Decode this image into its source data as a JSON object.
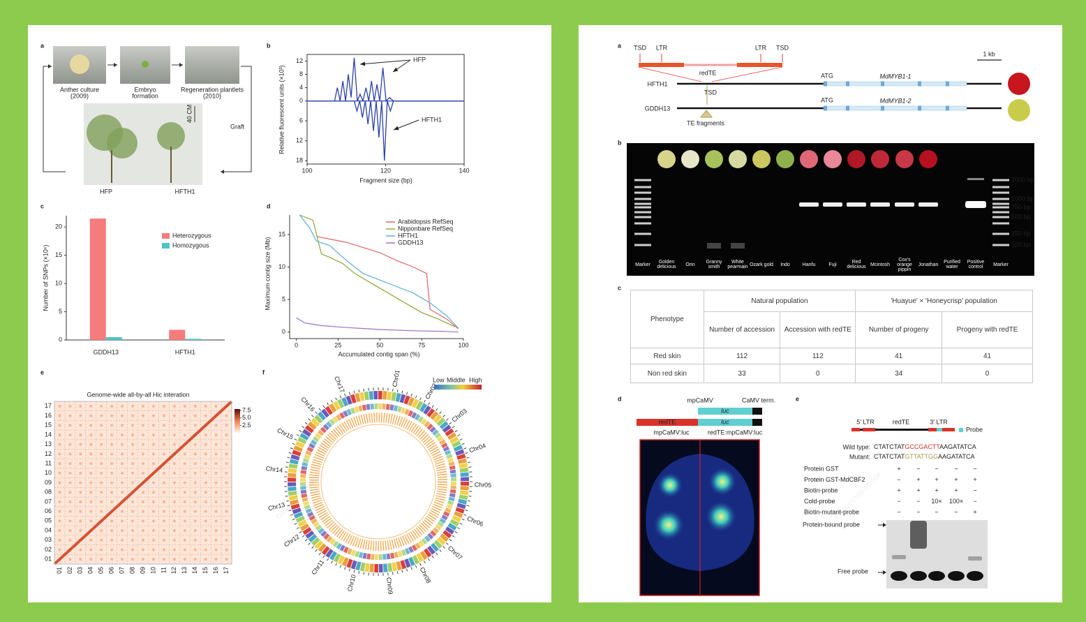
{
  "left_figure": {
    "panel_letters": [
      "a",
      "b",
      "c",
      "d",
      "e",
      "f"
    ],
    "steps": [
      [
        "Anther culture",
        "(2009)"
      ],
      [
        "Embryo",
        "formation"
      ],
      [
        "Regeneration plantlets",
        "(2010)"
      ]
    ],
    "graft": "Graft",
    "plants": [
      "HFP",
      "HFTH1"
    ],
    "scale": "40 CM"
  },
  "chart_data": [
    {
      "type": "line",
      "y_label": "Relative fluorescent units (×10³)",
      "x_label": "Fragment size (bp)",
      "xlim": [
        100,
        140
      ],
      "xticks": [
        100,
        120,
        140
      ],
      "ylim": [
        -19,
        14
      ],
      "yticks": [
        12,
        8,
        4,
        0,
        {
          "value": -6,
          "label": "6"
        },
        {
          "value": -12,
          "label": "12"
        },
        {
          "value": -18,
          "label": "18"
        }
      ],
      "series": [
        {
          "name": "HFP",
          "color": "#2b3fa8",
          "x": [
            100,
            107,
            107.7,
            108.4,
            109.1,
            109.8,
            110.5,
            111.2,
            112,
            112.8,
            113.5,
            114.2,
            115,
            115.7,
            116.4,
            117.1,
            117.8,
            118.5,
            119.3,
            120.1,
            121,
            122,
            140
          ],
          "values": [
            0,
            0,
            4,
            0,
            6,
            0,
            8,
            1,
            13,
            0,
            2,
            0,
            4,
            0,
            6,
            0,
            5,
            0,
            10,
            0,
            1,
            0,
            0
          ]
        },
        {
          "name": "HFTH1",
          "color": "#2b3fa8",
          "x": [
            100,
            112,
            112.7,
            113.4,
            114.1,
            114.8,
            115.5,
            116.2,
            116.9,
            117.6,
            118.3,
            119,
            119.7,
            120.4,
            121.2,
            122,
            140
          ],
          "values": [
            0,
            0,
            -3,
            0,
            -5,
            0,
            -7,
            0,
            -9,
            0,
            -11,
            0,
            -18,
            0,
            -3,
            0,
            0
          ]
        }
      ]
    },
    {
      "type": "bar",
      "y_label": "Number of SNPs (×10⁶)",
      "categories": [
        "GDDH13",
        "HFTH1"
      ],
      "ylim": [
        0,
        22
      ],
      "yticks": [
        0,
        5,
        10,
        15,
        20
      ],
      "legend": "upper right",
      "series": [
        {
          "name": "Heterozygous",
          "color": "#f47c7c",
          "values": [
            21.5,
            1.8
          ]
        },
        {
          "name": "Homozygous",
          "color": "#4fc3c9",
          "values": [
            0.5,
            0.2
          ]
        }
      ]
    },
    {
      "type": "line",
      "y_label": "Maximum contig size (Mb)",
      "x_label": "Accumulated contig span (%)",
      "xlim": [
        -4,
        100
      ],
      "xticks": [
        0,
        25,
        50,
        75,
        100
      ],
      "ylim": [
        -1,
        18
      ],
      "yticks": [
        0,
        5,
        10,
        15
      ],
      "legend": "upper right",
      "series": [
        {
          "name": "Arabidopsis RefSeq",
          "color": "#e06666",
          "x": [
            12,
            20,
            30,
            40,
            50,
            60,
            70,
            78,
            80,
            90,
            97
          ],
          "values": [
            14.7,
            14.3,
            13.8,
            13,
            12.2,
            11,
            10,
            9,
            3.5,
            2,
            0.5
          ]
        },
        {
          "name": "Nipponbare RefSeq",
          "color": "#8aa83a",
          "x": [
            2,
            10,
            15,
            20,
            28,
            35,
            45,
            55,
            65,
            75,
            85,
            95
          ],
          "values": [
            18,
            17.2,
            12,
            11.5,
            10.5,
            9,
            7.5,
            6,
            4.5,
            3,
            2,
            0.8
          ]
        },
        {
          "name": "HFTH1",
          "color": "#5aaed6",
          "x": [
            2,
            8,
            12,
            20,
            30,
            40,
            50,
            60,
            70,
            80,
            90,
            97
          ],
          "values": [
            18,
            16,
            14,
            13.3,
            11,
            9,
            8,
            7,
            6,
            4.5,
            2.5,
            0.6
          ]
        },
        {
          "name": "GDDH13",
          "color": "#9b6fc8",
          "x": [
            0,
            5,
            15,
            30,
            50,
            70,
            90,
            97
          ],
          "values": [
            2.2,
            1.4,
            1,
            0.7,
            0.4,
            0.2,
            0.1,
            0
          ]
        }
      ]
    },
    {
      "type": "heatmap",
      "title": "Genome-wide all-by-all Hic interation",
      "labels": [
        "01",
        "02",
        "03",
        "04",
        "05",
        "06",
        "07",
        "08",
        "09",
        "10",
        "11",
        "12",
        "13",
        "14",
        "15",
        "16",
        "17"
      ],
      "clim": [
        0,
        8
      ],
      "cticks": [
        7.5,
        {
          "value": 5,
          "label": "5.0"
        },
        2.5
      ]
    },
    {
      "type": "circos",
      "labels": [
        "Chr01",
        "Chr02",
        "Chr03",
        "Chr04",
        "Chr05",
        "Chr06",
        "Chr07",
        "Chr08",
        "Chr09",
        "Chr10",
        "Chr11",
        "Chr12",
        "Chr13",
        "Chr14",
        "Chr15",
        "Chr16",
        "Chr17"
      ],
      "legend": [
        "Low",
        "Middle",
        "High"
      ]
    }
  ],
  "right_figure": {
    "panel_letters": [
      "a",
      "b",
      "c",
      "d",
      "e"
    ],
    "te_labels": [
      "TSD",
      "LTR",
      "LTR",
      "TSD"
    ],
    "redTE": "redTE",
    "scale": "1 kb",
    "alleles": [
      {
        "name": "HFTH1",
        "atg": "ATG",
        "gene": "MdMYB1-1"
      },
      {
        "name": "GDDH13",
        "atg": "ATG",
        "gene": "MdMYB1-2"
      }
    ],
    "tsd": "TSD",
    "te_fragments": "TE fragments",
    "lanes": [
      "Marker",
      "Golden delicious",
      "Orin",
      "Granny smith",
      "White pearmain",
      "Ozark gold",
      "Indo",
      "Hanfu",
      "Fuji",
      "Red delicious",
      "Mcintosh",
      "Cox's orange pippin",
      "Jonathan",
      "Purified water",
      "Positive control",
      "Marker"
    ],
    "sizes": [
      "2000 bp",
      "1000 bp",
      "750 bp",
      "500 bp",
      "250 bp",
      "100 bp"
    ],
    "table": {
      "phenotype": "Phenotype",
      "groups": [
        "Natural population",
        "'Huayue' × 'Honeycrisp' population"
      ],
      "columns": [
        "Number of accession",
        "Accession with redTE",
        "Number of progeny",
        "Progeny with redTE"
      ],
      "rows": [
        [
          "Red skin",
          112,
          112,
          41,
          41
        ],
        [
          "Non red skin",
          33,
          0,
          34,
          0
        ]
      ]
    },
    "construct": {
      "promoter": "mpCaMV",
      "terminator": "CaMV term.",
      "luc": "luc",
      "redTE": "redTE",
      "names": [
        "mpCaMV:luc",
        "redTE:mpCaMV:luc"
      ]
    },
    "emsa": {
      "probe_map": [
        "5′ LTR",
        "redTE",
        "3′ LTR"
      ],
      "probe": "Probe",
      "wild_type": {
        "label": "Wild type:",
        "seq": [
          "CTATCTAT",
          "GCCGACTT",
          "AAGATATCA"
        ]
      },
      "mutant": {
        "label": "Mutant:",
        "seq": [
          "CTATCTAT",
          "GTTATTGG",
          "AAGATATCA"
        ]
      },
      "rows": [
        {
          "label": "Protein GST",
          "marks": [
            "+",
            "−",
            "−",
            "−",
            "−"
          ]
        },
        {
          "label": "Protein GST-MdCBF2",
          "marks": [
            "−",
            "+",
            "+",
            "+",
            "+"
          ]
        },
        {
          "label": "Biotin-probe",
          "marks": [
            "+",
            "+",
            "+",
            "+",
            "−"
          ]
        },
        {
          "label": "Cold-probe",
          "marks": [
            "−",
            "−",
            "10×",
            "100×",
            "−"
          ]
        },
        {
          "label": "Biotin-mutant-probe",
          "marks": [
            "−",
            "−",
            "−",
            "−",
            "+"
          ]
        }
      ],
      "bound": "Protein-bound probe",
      "free": "Free probe"
    }
  },
  "watermark": "CORRECTED PROOF"
}
